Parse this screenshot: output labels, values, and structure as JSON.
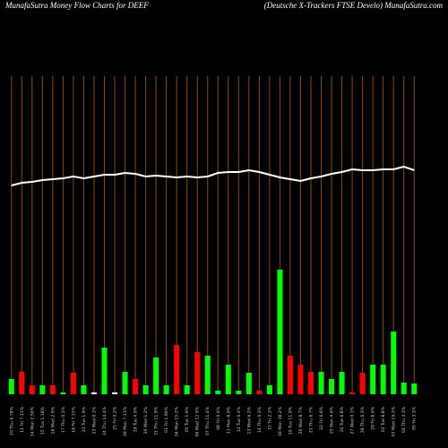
{
  "chart_data": {
    "type": "bar",
    "title": "MunafaSutra  Money Flow  Charts for DEEF",
    "subtitle": "(Deutsche   X-Trackers FTSE Develo) MunafaSutra.com",
    "categories": [
      "10 Thu 6.78%",
      "11 Fri 7.11%",
      "14 Mon 2.56%",
      "15 Tue 1.18%",
      "16 Wed 2.9%",
      "17 Thu 0.2%",
      "18 Fri 7.15%",
      "22 Tue 1.9%",
      "23 Wed 0.1%",
      "24 Thu 14.4%",
      "25 Fri 0.2%",
      "28 Mon 7.11%",
      "29 Tue 4.9%",
      "30 Wed 1.2%",
      "31 Thu 11.9%",
      "01 Fri 1.96%",
      "04 Mon 15.2%",
      "05 Tue 1.9%",
      "06 Wed 12.9%",
      "07 Thu 11.4%",
      "08 Fri 0.6%",
      "11 Mon 8.9%",
      "12 Tue 0.4%",
      "13 Wed 6.2%",
      "14 Thu 0.3%",
      "15 Fri 2.1%",
      "18 Mon 38.2%",
      "19 Tue 11.9%",
      "20 Wed 8.7%",
      "21 Thu 6.7%",
      "22 Fri 6.6%",
      "25 Mon 4.6%",
      "26 Tue 6.8%",
      "27 Wed 0.1%",
      "28 Thu 6.3%",
      "29 Fri 8.9%",
      "02 Tue 8.8%",
      "03 Wed 19.3%",
      "04 Thu 3.3%",
      "05 Fri 3.1%"
    ],
    "values": [
      17,
      25,
      10,
      10,
      10,
      2,
      24,
      10,
      2,
      52,
      2,
      25,
      17,
      10,
      41,
      10,
      55,
      10,
      47,
      43,
      4,
      33,
      4,
      24,
      4,
      10,
      139,
      43,
      33,
      25,
      25,
      17,
      25,
      2,
      24,
      33,
      33,
      70,
      13,
      12
    ],
    "bar_colors": [
      "#00ff00",
      "#ff0000",
      "#ff0000",
      "#00ff00",
      "#ff0000",
      "#00ff00",
      "#ff0000",
      "#00ff00",
      "#ffffff",
      "#00ff00",
      "#ffffff",
      "#00ff00",
      "#ff0000",
      "#00ff00",
      "#00ff00",
      "#00ff00",
      "#ff0000",
      "#00ff00",
      "#ff0000",
      "#00ff00",
      "#00ff00",
      "#00ff00",
      "#00ff00",
      "#00ff00",
      "#ff0000",
      "#00ff00",
      "#00ff00",
      "#ff0000",
      "#ff0000",
      "#ff0000",
      "#00ff00",
      "#00ff00",
      "#00ff00",
      "#ff0000",
      "#ff0000",
      "#00ff00",
      "#00ff00",
      "#00ff00",
      "#00ff00",
      "#00ff00"
    ],
    "line_values": [
      233,
      236,
      237,
      239,
      240,
      241,
      243,
      241,
      243,
      245,
      245,
      247,
      246,
      243,
      244,
      243,
      242,
      243,
      242,
      243,
      247,
      248,
      248,
      250,
      248,
      245,
      242,
      240,
      238,
      241,
      243,
      246,
      248,
      251,
      250,
      250,
      251,
      251,
      254,
      250
    ],
    "line_color": "#ffffff",
    "ylim": [
      0,
      355
    ],
    "grid_color": "#8b4a0f"
  }
}
